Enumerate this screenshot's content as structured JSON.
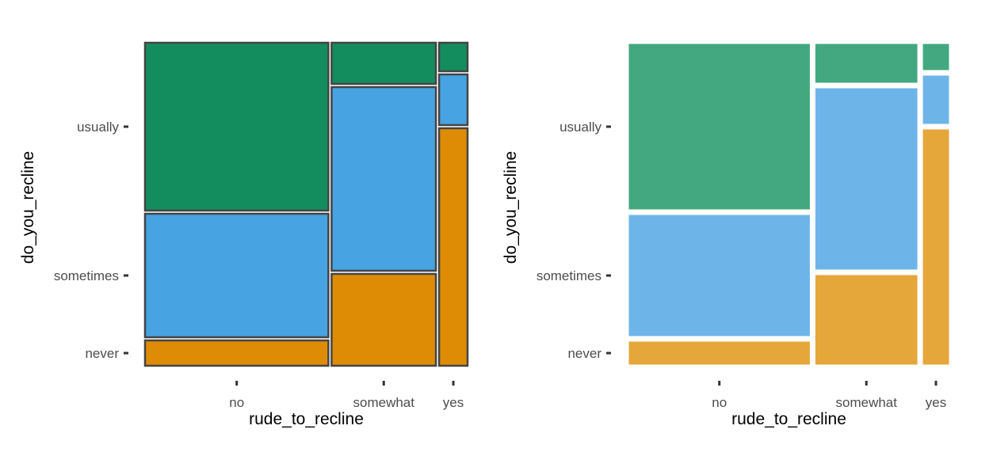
{
  "chart_data": [
    {
      "type": "mosaic",
      "xlabel": "rude_to_recline",
      "ylabel": "do_you_recline",
      "x_categories": [
        "no",
        "somewhat",
        "yes"
      ],
      "y_categories": [
        "never",
        "sometimes",
        "usually"
      ],
      "x_widths": [
        0.58,
        0.33,
        0.09
      ],
      "columns": [
        {
          "x": "no",
          "proportions": {
            "never": 0.08,
            "sometimes": 0.39,
            "usually": 0.53
          }
        },
        {
          "x": "somewhat",
          "proportions": {
            "never": 0.29,
            "sometimes": 0.58,
            "usually": 0.13
          }
        },
        {
          "x": "yes",
          "proportions": {
            "never": 0.75,
            "sometimes": 0.16,
            "usually": 0.09
          }
        }
      ],
      "colors": {
        "never": "#DE8C06",
        "sometimes": "#47A3E2",
        "usually": "#138D5E"
      },
      "fill_opacity": 1.0,
      "outline_color": "#444444"
    },
    {
      "type": "mosaic",
      "xlabel": "rude_to_recline",
      "ylabel": "do_you_recline",
      "x_categories": [
        "no",
        "somewhat",
        "yes"
      ],
      "y_categories": [
        "never",
        "sometimes",
        "usually"
      ],
      "x_widths": [
        0.58,
        0.33,
        0.09
      ],
      "columns": [
        {
          "x": "no",
          "proportions": {
            "never": 0.08,
            "sometimes": 0.39,
            "usually": 0.53
          }
        },
        {
          "x": "somewhat",
          "proportions": {
            "never": 0.29,
            "sometimes": 0.58,
            "usually": 0.13
          }
        },
        {
          "x": "yes",
          "proportions": {
            "never": 0.75,
            "sometimes": 0.16,
            "usually": 0.09
          }
        }
      ],
      "colors": {
        "never": "#E5A63A",
        "sometimes": "#6DB5E8",
        "usually": "#43A880"
      },
      "fill_opacity": 1.0,
      "outline_color": "#ffffff"
    }
  ]
}
